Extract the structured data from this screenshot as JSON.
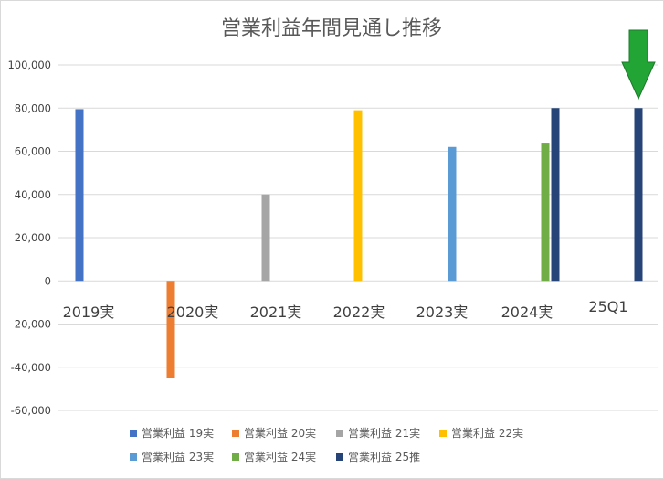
{
  "chart_data": {
    "type": "bar",
    "title": "営業利益年間見通し推移",
    "categories": [
      "2019実",
      "2020実",
      "2021実",
      "2022実",
      "2023実",
      "2024実",
      "25Q1"
    ],
    "y_ticks": [
      "100,000",
      "80,000",
      "60,000",
      "40,000",
      "20,000",
      "0",
      "-20,000",
      "-40,000",
      "-60,000"
    ],
    "ylim": [
      -60000,
      100000
    ],
    "grid": true,
    "legend_position": "bottom",
    "series": [
      {
        "name": "営業利益 19実",
        "color": "#4472C4",
        "values": [
          79500,
          null,
          null,
          null,
          null,
          null,
          null
        ]
      },
      {
        "name": "営業利益 20実",
        "color": "#ED7D31",
        "values": [
          null,
          -45000,
          null,
          null,
          null,
          null,
          null
        ]
      },
      {
        "name": "営業利益 21実",
        "color": "#A5A5A5",
        "values": [
          null,
          null,
          40000,
          null,
          null,
          null,
          null
        ]
      },
      {
        "name": "営業利益 22実",
        "color": "#FFC000",
        "values": [
          null,
          null,
          null,
          79000,
          null,
          null,
          null
        ]
      },
      {
        "name": "営業利益 23実",
        "color": "#5B9BD5",
        "values": [
          null,
          null,
          null,
          null,
          62000,
          null,
          null
        ]
      },
      {
        "name": "営業利益 24実",
        "color": "#70AD47",
        "values": [
          null,
          null,
          null,
          null,
          null,
          64000,
          null
        ]
      },
      {
        "name": "営業利益 25推",
        "color": "#264478",
        "values": [
          null,
          null,
          null,
          null,
          null,
          80000,
          80000
        ]
      }
    ],
    "annotation": {
      "type": "arrow-down",
      "color": "#22A535",
      "target": "25Q1"
    }
  }
}
